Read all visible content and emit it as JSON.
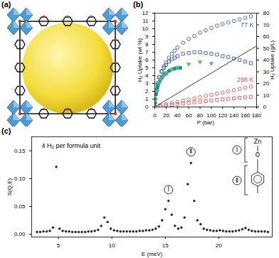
{
  "chart_data": [
    {
      "type": "scatter",
      "panel_label": "(b)",
      "x_label": "P (bar)",
      "y_label": "H₂ Uptake (wt %)",
      "y2_label": "H₂ Uptake (g/L)",
      "xlim": [
        0,
        180
      ],
      "xticks": [
        0,
        20,
        40,
        60,
        80,
        100,
        120,
        140,
        160,
        180
      ],
      "ylim": [
        0,
        12
      ],
      "yticks": [
        0,
        1,
        2,
        3,
        4,
        5,
        6,
        7,
        8,
        9,
        10,
        11,
        12
      ],
      "y2lim": [
        0,
        80
      ],
      "y2ticks": [
        0,
        10,
        20,
        30,
        40,
        50,
        60,
        70,
        80
      ],
      "series": [
        {
          "name": "77 K",
          "color": "#3b5ba5",
          "marker": "open-circle",
          "x": [
            2,
            5,
            8,
            12,
            16,
            20,
            25,
            30,
            35,
            40,
            50,
            60,
            70,
            80,
            90,
            100,
            110,
            120,
            130,
            140,
            150,
            160,
            170
          ],
          "values": [
            1.8,
            3.0,
            3.8,
            4.6,
            5.2,
            5.7,
            6.3,
            6.8,
            7.2,
            7.6,
            8.2,
            8.7,
            9.1,
            9.5,
            9.8,
            10.1,
            10.4,
            10.6,
            10.8,
            11.0,
            11.2,
            11.4,
            11.6
          ]
        },
        {
          "color": "#3b5ba5",
          "marker": "open-square",
          "x": [
            2,
            5,
            8,
            12,
            16,
            20,
            25,
            30,
            35,
            40,
            50,
            60,
            70,
            80,
            90,
            100,
            110,
            120,
            130,
            140,
            150,
            160,
            170
          ],
          "values": [
            1.8,
            3.0,
            3.8,
            4.5,
            5.0,
            5.4,
            5.8,
            6.1,
            6.3,
            6.5,
            6.8,
            6.9,
            7.0,
            7.0,
            6.9,
            6.8,
            6.7,
            6.5,
            6.4,
            6.2,
            6.0,
            5.8,
            5.6
          ]
        },
        {
          "color": "#1f8a9a",
          "marker": "filled-circle",
          "x": [
            0.5,
            1,
            2,
            3,
            4,
            5,
            6,
            8,
            10,
            12,
            15,
            18,
            20,
            25,
            30,
            35,
            40,
            45
          ],
          "values": [
            0.5,
            1.0,
            1.6,
            2.0,
            2.3,
            2.6,
            2.9,
            3.2,
            3.5,
            3.7,
            4.0,
            4.2,
            4.3,
            4.6,
            4.8,
            4.9,
            5.0,
            5.0
          ]
        },
        {
          "color": "#5fb88a",
          "marker": "filled-triangle-down",
          "x": [
            1,
            3,
            6,
            10,
            15,
            20,
            30,
            40,
            60,
            80,
            100
          ],
          "values": [
            0.8,
            2.0,
            3.0,
            3.5,
            3.9,
            4.3,
            4.7,
            5.0,
            5.4,
            5.7,
            5.5
          ]
        },
        {
          "name": "298 K",
          "color": "#d9534f",
          "marker": "open-circle",
          "x": [
            0,
            10,
            20,
            30,
            40,
            50,
            60,
            70,
            80,
            90,
            100,
            110,
            120,
            130,
            140,
            150,
            160,
            170
          ],
          "values": [
            0,
            0.2,
            0.35,
            0.5,
            0.65,
            0.8,
            0.95,
            1.1,
            1.25,
            1.4,
            1.55,
            1.7,
            1.85,
            2.0,
            2.15,
            2.3,
            2.45,
            2.6
          ]
        },
        {
          "color": "#d9534f",
          "marker": "open-square",
          "x": [
            0,
            10,
            20,
            30,
            40,
            50,
            60,
            70,
            80,
            90,
            100,
            110,
            120,
            130,
            140,
            150,
            160,
            170
          ],
          "values": [
            0,
            0.1,
            0.2,
            0.28,
            0.36,
            0.44,
            0.52,
            0.6,
            0.68,
            0.75,
            0.82,
            0.9,
            0.97,
            1.04,
            1.1,
            1.17,
            1.23,
            1.3
          ]
        },
        {
          "type": "line",
          "axis": "y2",
          "color": "#222222",
          "line_style": "solid",
          "x": [
            0,
            180
          ],
          "values": [
            0,
            52
          ]
        }
      ]
    },
    {
      "type": "scatter",
      "panel_label": "(c)",
      "title": "4 H₂ per formula unit",
      "x_label": "E (meV)",
      "y_label": "S(Q,E)",
      "xlim": [
        2.5,
        25
      ],
      "xticks": [
        5,
        10,
        15,
        20
      ],
      "ylim": [
        -0.005,
        0.175
      ],
      "yticks": [
        {
          "value": 0,
          "label": "0.00"
        },
        0.05,
        {
          "value": 0.1,
          "label": "0.10"
        },
        0.15
      ],
      "color": "#222222",
      "marker": "filled-circle",
      "x": [
        3.0,
        3.3,
        3.6,
        3.9,
        4.2,
        4.5,
        4.8,
        5.1,
        5.4,
        5.7,
        6.0,
        6.3,
        6.6,
        6.9,
        7.2,
        7.5,
        7.8,
        8.1,
        8.4,
        8.7,
        9.0,
        9.3,
        9.6,
        9.9,
        10.2,
        10.5,
        10.8,
        11.1,
        11.4,
        11.7,
        12.0,
        12.3,
        12.6,
        12.9,
        13.2,
        13.5,
        13.8,
        14.1,
        14.4,
        14.7,
        15.0,
        15.3,
        15.6,
        15.9,
        16.2,
        16.5,
        16.8,
        17.1,
        17.4,
        17.7,
        18.0,
        18.3,
        18.6,
        18.9,
        19.2,
        19.5,
        19.8,
        20.1,
        20.4,
        20.7,
        21.0,
        21.3,
        21.6,
        21.9,
        22.2,
        22.5,
        22.8,
        23.1,
        23.4,
        23.7,
        24.0,
        24.3,
        24.6
      ],
      "values": [
        0.004,
        0.004,
        0.005,
        0.005,
        0.006,
        0.012,
        0.121,
        0.01,
        0.006,
        0.005,
        0.005,
        0.004,
        0.004,
        0.004,
        0.004,
        0.004,
        0.005,
        0.005,
        0.006,
        0.008,
        0.015,
        0.03,
        0.022,
        0.01,
        0.007,
        0.006,
        0.005,
        0.005,
        0.005,
        0.005,
        0.005,
        0.005,
        0.006,
        0.006,
        0.007,
        0.007,
        0.008,
        0.01,
        0.014,
        0.025,
        0.045,
        0.06,
        0.035,
        0.015,
        0.01,
        0.012,
        0.03,
        0.09,
        0.128,
        0.06,
        0.025,
        0.018,
        0.01,
        0.008,
        0.007,
        0.006,
        0.006,
        0.007,
        0.006,
        0.005,
        0.005,
        0.005,
        0.006,
        0.007,
        0.009,
        0.011,
        0.008,
        0.006,
        0.005,
        0.005,
        0.005,
        0.005,
        0.004
      ],
      "annotations": [
        {
          "text": "Ⅰ",
          "x": 15.3,
          "y": 0.08
        },
        {
          "text": "Ⅱ",
          "x": 17.4,
          "y": 0.148
        }
      ],
      "inset": {
        "atoms": [
          "Zn",
          "O"
        ],
        "labels": [
          "Ⅰ",
          "Ⅱ"
        ]
      }
    }
  ],
  "image_panel": {
    "panel_label": "(a)"
  }
}
